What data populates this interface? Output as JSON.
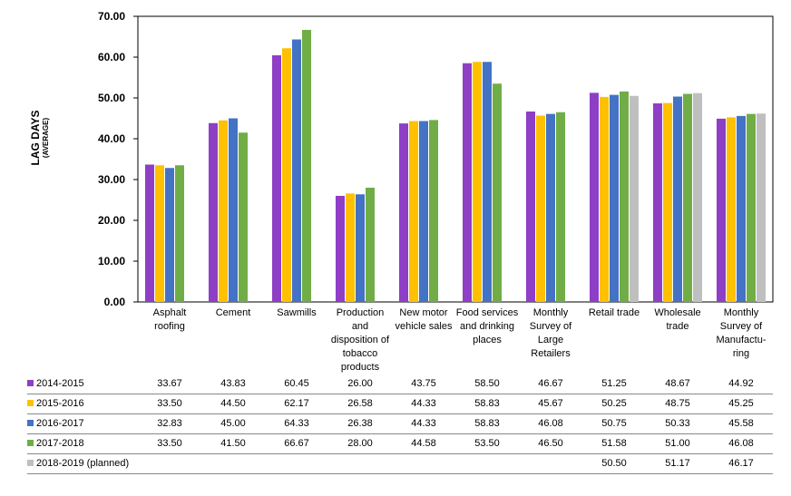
{
  "chart_data": {
    "type": "bar",
    "ylabel": "LAG DAYS",
    "ylabel_sub": "(AVERAGE)",
    "ylim": [
      0,
      70
    ],
    "yticks": [
      "0.00",
      "10.00",
      "20.00",
      "30.00",
      "40.00",
      "50.00",
      "60.00",
      "70.00"
    ],
    "categories": [
      "Asphalt roofing",
      "Cement",
      "Sawmills",
      "Production and disposition of tobacco products",
      "New motor vehicle sales",
      "Food services and drinking places",
      "Monthly Survey of Large Retailers",
      "Retail trade",
      "Wholesale trade",
      "Monthly Survey of Manufactu-ring"
    ],
    "series": [
      {
        "name": "2014-2015",
        "color": "#8e3fc6",
        "values": [
          33.67,
          43.83,
          60.45,
          26.0,
          43.75,
          58.5,
          46.67,
          51.25,
          48.67,
          44.92
        ]
      },
      {
        "name": "2015-2016",
        "color": "#ffc000",
        "values": [
          33.5,
          44.5,
          62.17,
          26.58,
          44.33,
          58.83,
          45.67,
          50.25,
          48.75,
          45.25
        ]
      },
      {
        "name": "2016-2017",
        "color": "#4472c4",
        "values": [
          32.83,
          45.0,
          64.33,
          26.38,
          44.33,
          58.83,
          46.08,
          50.75,
          50.33,
          45.58
        ]
      },
      {
        "name": "2017-2018",
        "color": "#70ad47",
        "values": [
          33.5,
          41.5,
          66.67,
          28.0,
          44.58,
          53.5,
          46.5,
          51.58,
          51.0,
          46.08
        ]
      },
      {
        "name": "2018-2019 (planned)",
        "color": "#bfbfbf",
        "values": [
          null,
          null,
          null,
          null,
          null,
          null,
          null,
          50.5,
          51.17,
          46.17
        ]
      }
    ]
  }
}
